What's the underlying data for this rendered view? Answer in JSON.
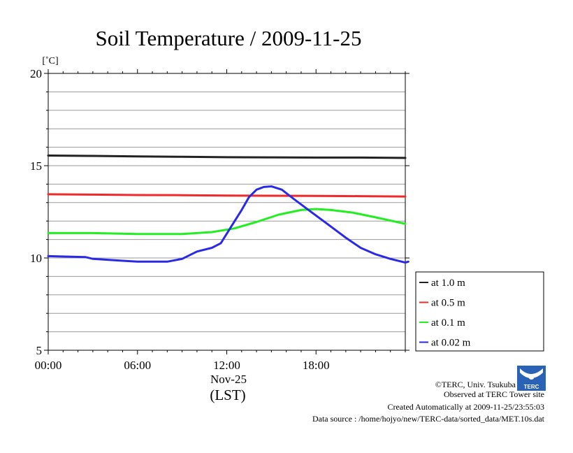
{
  "chart_data": {
    "type": "line",
    "title": "Soil Temperature / 2009-11-25",
    "ylabel": "[˚C]",
    "xlabel_date": "Nov-25",
    "xlabel": "(LST)",
    "ylim": [
      5,
      20
    ],
    "xlim": [
      0,
      24
    ],
    "yticks": [
      "20",
      "15",
      "10",
      "5"
    ],
    "yticks_values": [
      20,
      15,
      10,
      5
    ],
    "xticks": [
      "00:00",
      "06:00",
      "12:00",
      "18:00"
    ],
    "xticks_values": [
      0,
      6,
      12,
      18
    ],
    "grid": true,
    "legend_position": "right",
    "series": [
      {
        "name": "at 1.0 m",
        "color": "#222222",
        "points": [
          [
            0,
            15.55
          ],
          [
            3,
            15.53
          ],
          [
            6,
            15.5
          ],
          [
            9,
            15.48
          ],
          [
            12,
            15.46
          ],
          [
            15,
            15.45
          ],
          [
            18,
            15.44
          ],
          [
            21,
            15.44
          ],
          [
            24,
            15.42
          ]
        ]
      },
      {
        "name": "at 0.5 m",
        "color": "#ee2a2a",
        "points": [
          [
            0,
            13.45
          ],
          [
            3,
            13.43
          ],
          [
            6,
            13.41
          ],
          [
            9,
            13.4
          ],
          [
            12,
            13.38
          ],
          [
            15,
            13.37
          ],
          [
            18,
            13.36
          ],
          [
            21,
            13.35
          ],
          [
            24,
            13.33
          ]
        ]
      },
      {
        "name": "at 0.1 m",
        "color": "#22ee22",
        "points": [
          [
            0,
            11.35
          ],
          [
            3,
            11.35
          ],
          [
            6,
            11.3
          ],
          [
            9,
            11.3
          ],
          [
            11,
            11.4
          ],
          [
            12.5,
            11.6
          ],
          [
            14,
            11.95
          ],
          [
            15.5,
            12.35
          ],
          [
            17,
            12.6
          ],
          [
            18,
            12.65
          ],
          [
            19,
            12.6
          ],
          [
            20.5,
            12.45
          ],
          [
            22,
            12.2
          ],
          [
            24,
            11.85
          ]
        ]
      },
      {
        "name": "at 0.02 m",
        "color": "#2a2ae6",
        "points": [
          [
            0,
            10.1
          ],
          [
            2.5,
            10.05
          ],
          [
            3,
            9.95
          ],
          [
            5,
            9.85
          ],
          [
            6,
            9.8
          ],
          [
            8,
            9.8
          ],
          [
            9,
            9.95
          ],
          [
            10,
            10.35
          ],
          [
            11,
            10.55
          ],
          [
            11.6,
            10.8
          ],
          [
            12.3,
            11.7
          ],
          [
            13,
            12.6
          ],
          [
            13.5,
            13.3
          ],
          [
            14,
            13.7
          ],
          [
            14.5,
            13.85
          ],
          [
            15,
            13.88
          ],
          [
            15.7,
            13.7
          ],
          [
            16.5,
            13.2
          ],
          [
            17.5,
            12.6
          ],
          [
            19,
            11.7
          ],
          [
            20,
            11.1
          ],
          [
            21,
            10.55
          ],
          [
            22,
            10.2
          ],
          [
            23,
            9.95
          ],
          [
            24,
            9.75
          ],
          [
            24.2,
            9.8
          ]
        ]
      }
    ]
  },
  "footer": {
    "copyright": "©TERC, Univ. Tsukuba",
    "observed": "Observed at TERC Tower site",
    "created": "Created Automatically at 2009-11-25/23:55:03",
    "source": "Data source : /home/hojyo/new/TERC-data/sorted_data/MET.10s.dat"
  },
  "logo": {
    "text": "TERC",
    "color": "#2a63b5"
  }
}
